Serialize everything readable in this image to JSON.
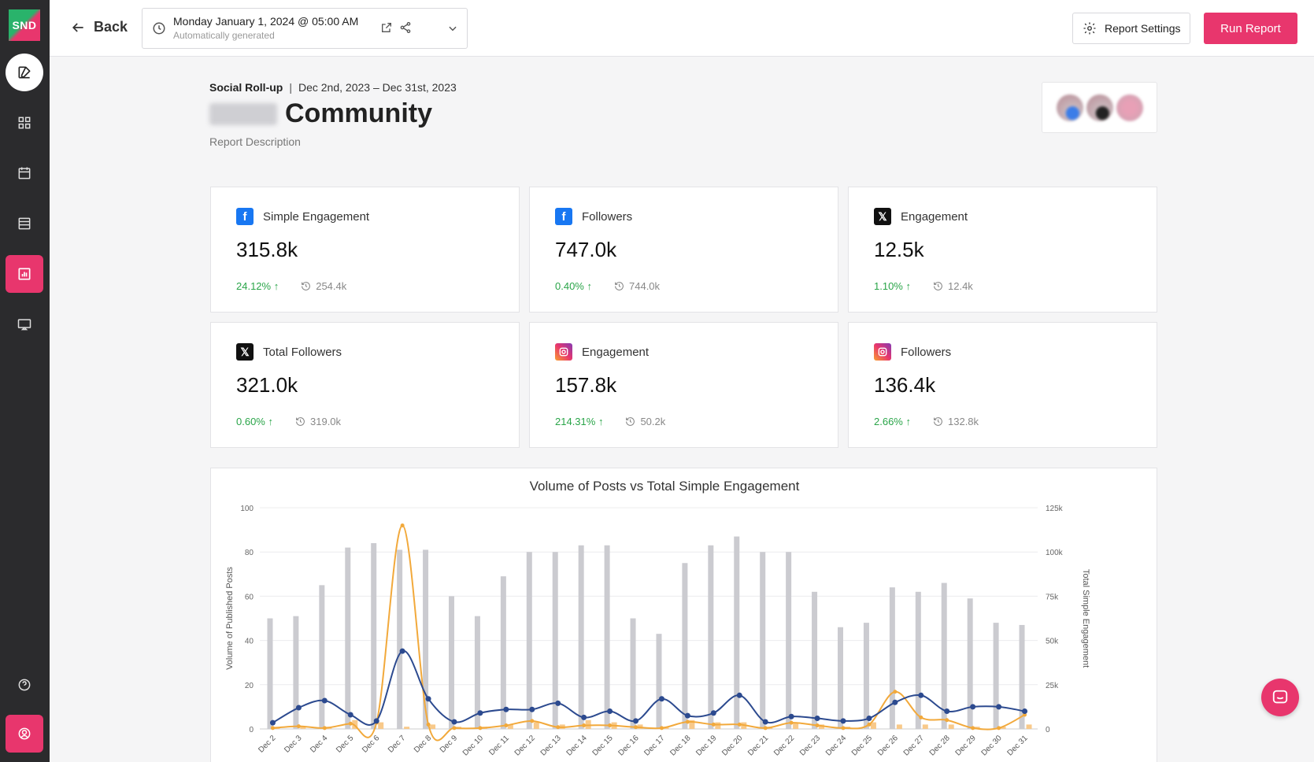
{
  "sidebar": {
    "logo_text": "SND",
    "items": [
      {
        "name": "compose",
        "icon": "compose-icon"
      },
      {
        "name": "dashboard",
        "icon": "grid-icon"
      },
      {
        "name": "calendar",
        "icon": "calendar-icon"
      },
      {
        "name": "list",
        "icon": "list-icon"
      },
      {
        "name": "reports",
        "icon": "bar-chart-icon",
        "active": true
      },
      {
        "name": "presentation",
        "icon": "monitor-icon"
      },
      {
        "name": "help",
        "icon": "help-icon"
      },
      {
        "name": "profile",
        "icon": "user-icon"
      }
    ]
  },
  "topbar": {
    "back_label": "Back",
    "date_main": "Monday January 1, 2024 @ 05:00 AM",
    "date_sub": "Automatically generated",
    "settings_label": "Report Settings",
    "run_label": "Run Report"
  },
  "report": {
    "type": "Social Roll-up",
    "date_range": "Dec 2nd, 2023 – Dec 31st, 2023",
    "title": "Community",
    "description": "Report Description"
  },
  "metrics": [
    {
      "platform": "facebook",
      "label": "Simple Engagement",
      "value": "315.8k",
      "change": "24.12%",
      "previous": "254.4k"
    },
    {
      "platform": "facebook",
      "label": "Followers",
      "value": "747.0k",
      "change": "0.40%",
      "previous": "744.0k"
    },
    {
      "platform": "x",
      "label": "Engagement",
      "value": "12.5k",
      "change": "1.10%",
      "previous": "12.4k"
    },
    {
      "platform": "x",
      "label": "Total Followers",
      "value": "321.0k",
      "change": "0.60%",
      "previous": "319.0k"
    },
    {
      "platform": "instagram",
      "label": "Engagement",
      "value": "157.8k",
      "change": "214.31%",
      "previous": "50.2k"
    },
    {
      "platform": "instagram",
      "label": "Followers",
      "value": "136.4k",
      "change": "2.66%",
      "previous": "132.8k"
    }
  ],
  "colors": {
    "accent": "#e8366d",
    "positive": "#2aa549",
    "bar": "#cbcbd0",
    "bar_small": "#f8c98a",
    "line_blue": "#2c4a8f",
    "line_orange": "#f2a93b"
  },
  "chart_data": {
    "type": "bar",
    "title": "Volume of Posts vs Total Simple Engagement",
    "ylabel": "Volume of Published Posts",
    "y2label": "Total Simple Engagement",
    "ylim": [
      0,
      100
    ],
    "y2lim": [
      0,
      125000
    ],
    "yticks": [
      "100",
      "80",
      "60",
      "40",
      "20",
      "0"
    ],
    "y2ticks": [
      "125k",
      "100k",
      "75k",
      "50k",
      "25k",
      "0"
    ],
    "categories": [
      "Dec 2",
      "Dec 3",
      "Dec 4",
      "Dec 5",
      "Dec 6",
      "Dec 7",
      "Dec 8",
      "Dec 9",
      "Dec 10",
      "Dec 11",
      "Dec 12",
      "Dec 13",
      "Dec 14",
      "Dec 15",
      "Dec 16",
      "Dec 17",
      "Dec 18",
      "Dec 19",
      "Dec 20",
      "Dec 21",
      "Dec 22",
      "Dec 23",
      "Dec 24",
      "Dec 25",
      "Dec 26",
      "Dec 27",
      "Dec 28",
      "Dec 29",
      "Dec 30",
      "Dec 31"
    ],
    "series": [
      {
        "type": "bar",
        "axis": "left",
        "values": [
          50,
          51,
          65,
          82,
          84,
          81,
          81,
          60,
          51,
          69,
          80,
          80,
          83,
          83,
          50,
          43,
          75,
          83,
          87,
          80,
          80,
          62,
          46,
          48,
          64,
          62,
          66,
          59,
          48,
          47
        ]
      },
      {
        "type": "bar",
        "axis": "left",
        "values": [
          1,
          1,
          1,
          4,
          3,
          1,
          2,
          1,
          1,
          2,
          3,
          2,
          4,
          3,
          2,
          1,
          4,
          3,
          3,
          1,
          3,
          2,
          1,
          3,
          2,
          2,
          2,
          1,
          1,
          2
        ]
      },
      {
        "type": "line",
        "axis": "right",
        "values": [
          3500,
          12000,
          16000,
          8000,
          4500,
          44000,
          17000,
          4000,
          9000,
          11000,
          11000,
          14500,
          6500,
          10000,
          4500,
          17000,
          7500,
          9000,
          19000,
          4000,
          7000,
          6000,
          4500,
          6000,
          15000,
          19000,
          10000,
          12500,
          12500,
          10000
        ]
      },
      {
        "type": "line",
        "axis": "right",
        "values": [
          500,
          1500,
          500,
          3000,
          3500,
          115000,
          2500,
          500,
          500,
          2000,
          4500,
          1000,
          2000,
          2000,
          1000,
          500,
          4000,
          2500,
          2500,
          500,
          3500,
          2000,
          500,
          2500,
          21000,
          6500,
          5000,
          500,
          500,
          8000
        ]
      }
    ]
  },
  "chat_icon": "chat-icon"
}
